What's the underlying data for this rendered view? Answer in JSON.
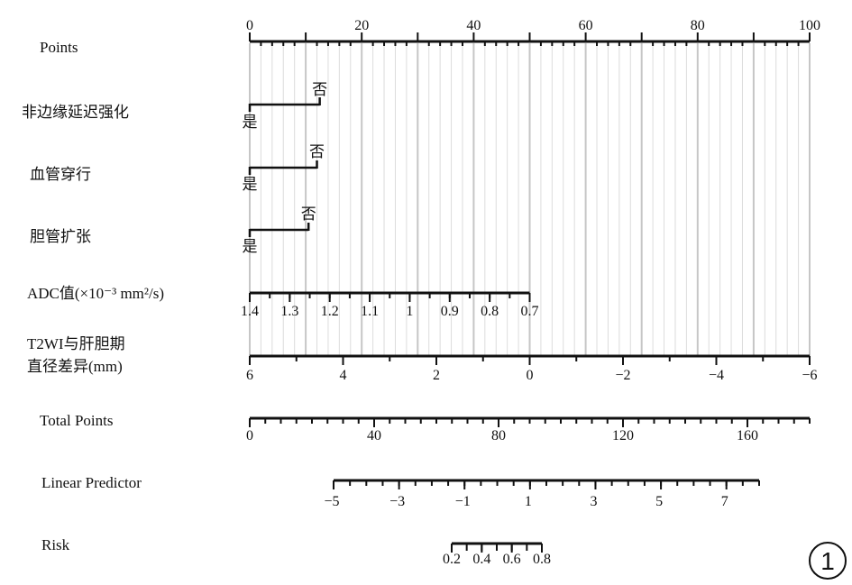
{
  "figure_label": "1",
  "chart_data": {
    "type": "nomogram",
    "grid": true,
    "rows": [
      {
        "key": "points",
        "label": "Points",
        "range": [
          0,
          100
        ],
        "tick_labels": [
          "0",
          "20",
          "40",
          "60",
          "80",
          "100"
        ],
        "tick_values": [
          0,
          20,
          40,
          60,
          80,
          100
        ]
      },
      {
        "key": "nonmarginal",
        "label": "非边缘延迟强化",
        "categories": [
          {
            "label": "是",
            "points": 0
          },
          {
            "label": "否",
            "points": 12.5
          }
        ]
      },
      {
        "key": "vessel",
        "label": "血管穿行",
        "categories": [
          {
            "label": "是",
            "points": 0
          },
          {
            "label": "否",
            "points": 12
          }
        ]
      },
      {
        "key": "bile",
        "label": "胆管扩张",
        "categories": [
          {
            "label": "是",
            "points": 0
          },
          {
            "label": "否",
            "points": 10.5
          }
        ]
      },
      {
        "key": "adc",
        "label": "ADC值(×10⁻³ mm²/s)",
        "range": [
          1.4,
          0.7
        ],
        "points_range": [
          0,
          50
        ],
        "tick_labels": [
          "1.4",
          "1.3",
          "1.2",
          "1.1",
          "1",
          "0.9",
          "0.8",
          "0.7"
        ],
        "tick_values": [
          1.4,
          1.3,
          1.2,
          1.1,
          1.0,
          0.9,
          0.8,
          0.7
        ]
      },
      {
        "key": "t2wi",
        "label_line1": "T2WI与肝胆期",
        "label_line2": "直径差异(mm)",
        "range": [
          6,
          -6
        ],
        "points_range": [
          0,
          100
        ],
        "tick_labels": [
          "6",
          "4",
          "2",
          "0",
          "−2",
          "−4",
          "−6"
        ],
        "tick_values": [
          6,
          4,
          2,
          0,
          -2,
          -4,
          -6
        ]
      },
      {
        "key": "total",
        "label": "Total Points",
        "range": [
          0,
          180
        ],
        "tick_labels": [
          "0",
          "40",
          "80",
          "120",
          "160"
        ],
        "tick_values": [
          0,
          40,
          80,
          120,
          160
        ]
      },
      {
        "key": "lp",
        "label": "Linear Predictor",
        "range": [
          -5,
          8
        ],
        "tick_labels": [
          "−5",
          "−3",
          "−1",
          "1",
          "3",
          "5",
          "7"
        ],
        "tick_values": [
          -5,
          -3,
          -1,
          1,
          3,
          5,
          7
        ]
      },
      {
        "key": "risk",
        "label": "Risk",
        "range": [
          0.2,
          0.8
        ],
        "tick_labels": [
          "0.2",
          "0.4",
          "0.6",
          "0.8"
        ],
        "tick_values": [
          0.2,
          0.4,
          0.6,
          0.8
        ]
      }
    ]
  }
}
